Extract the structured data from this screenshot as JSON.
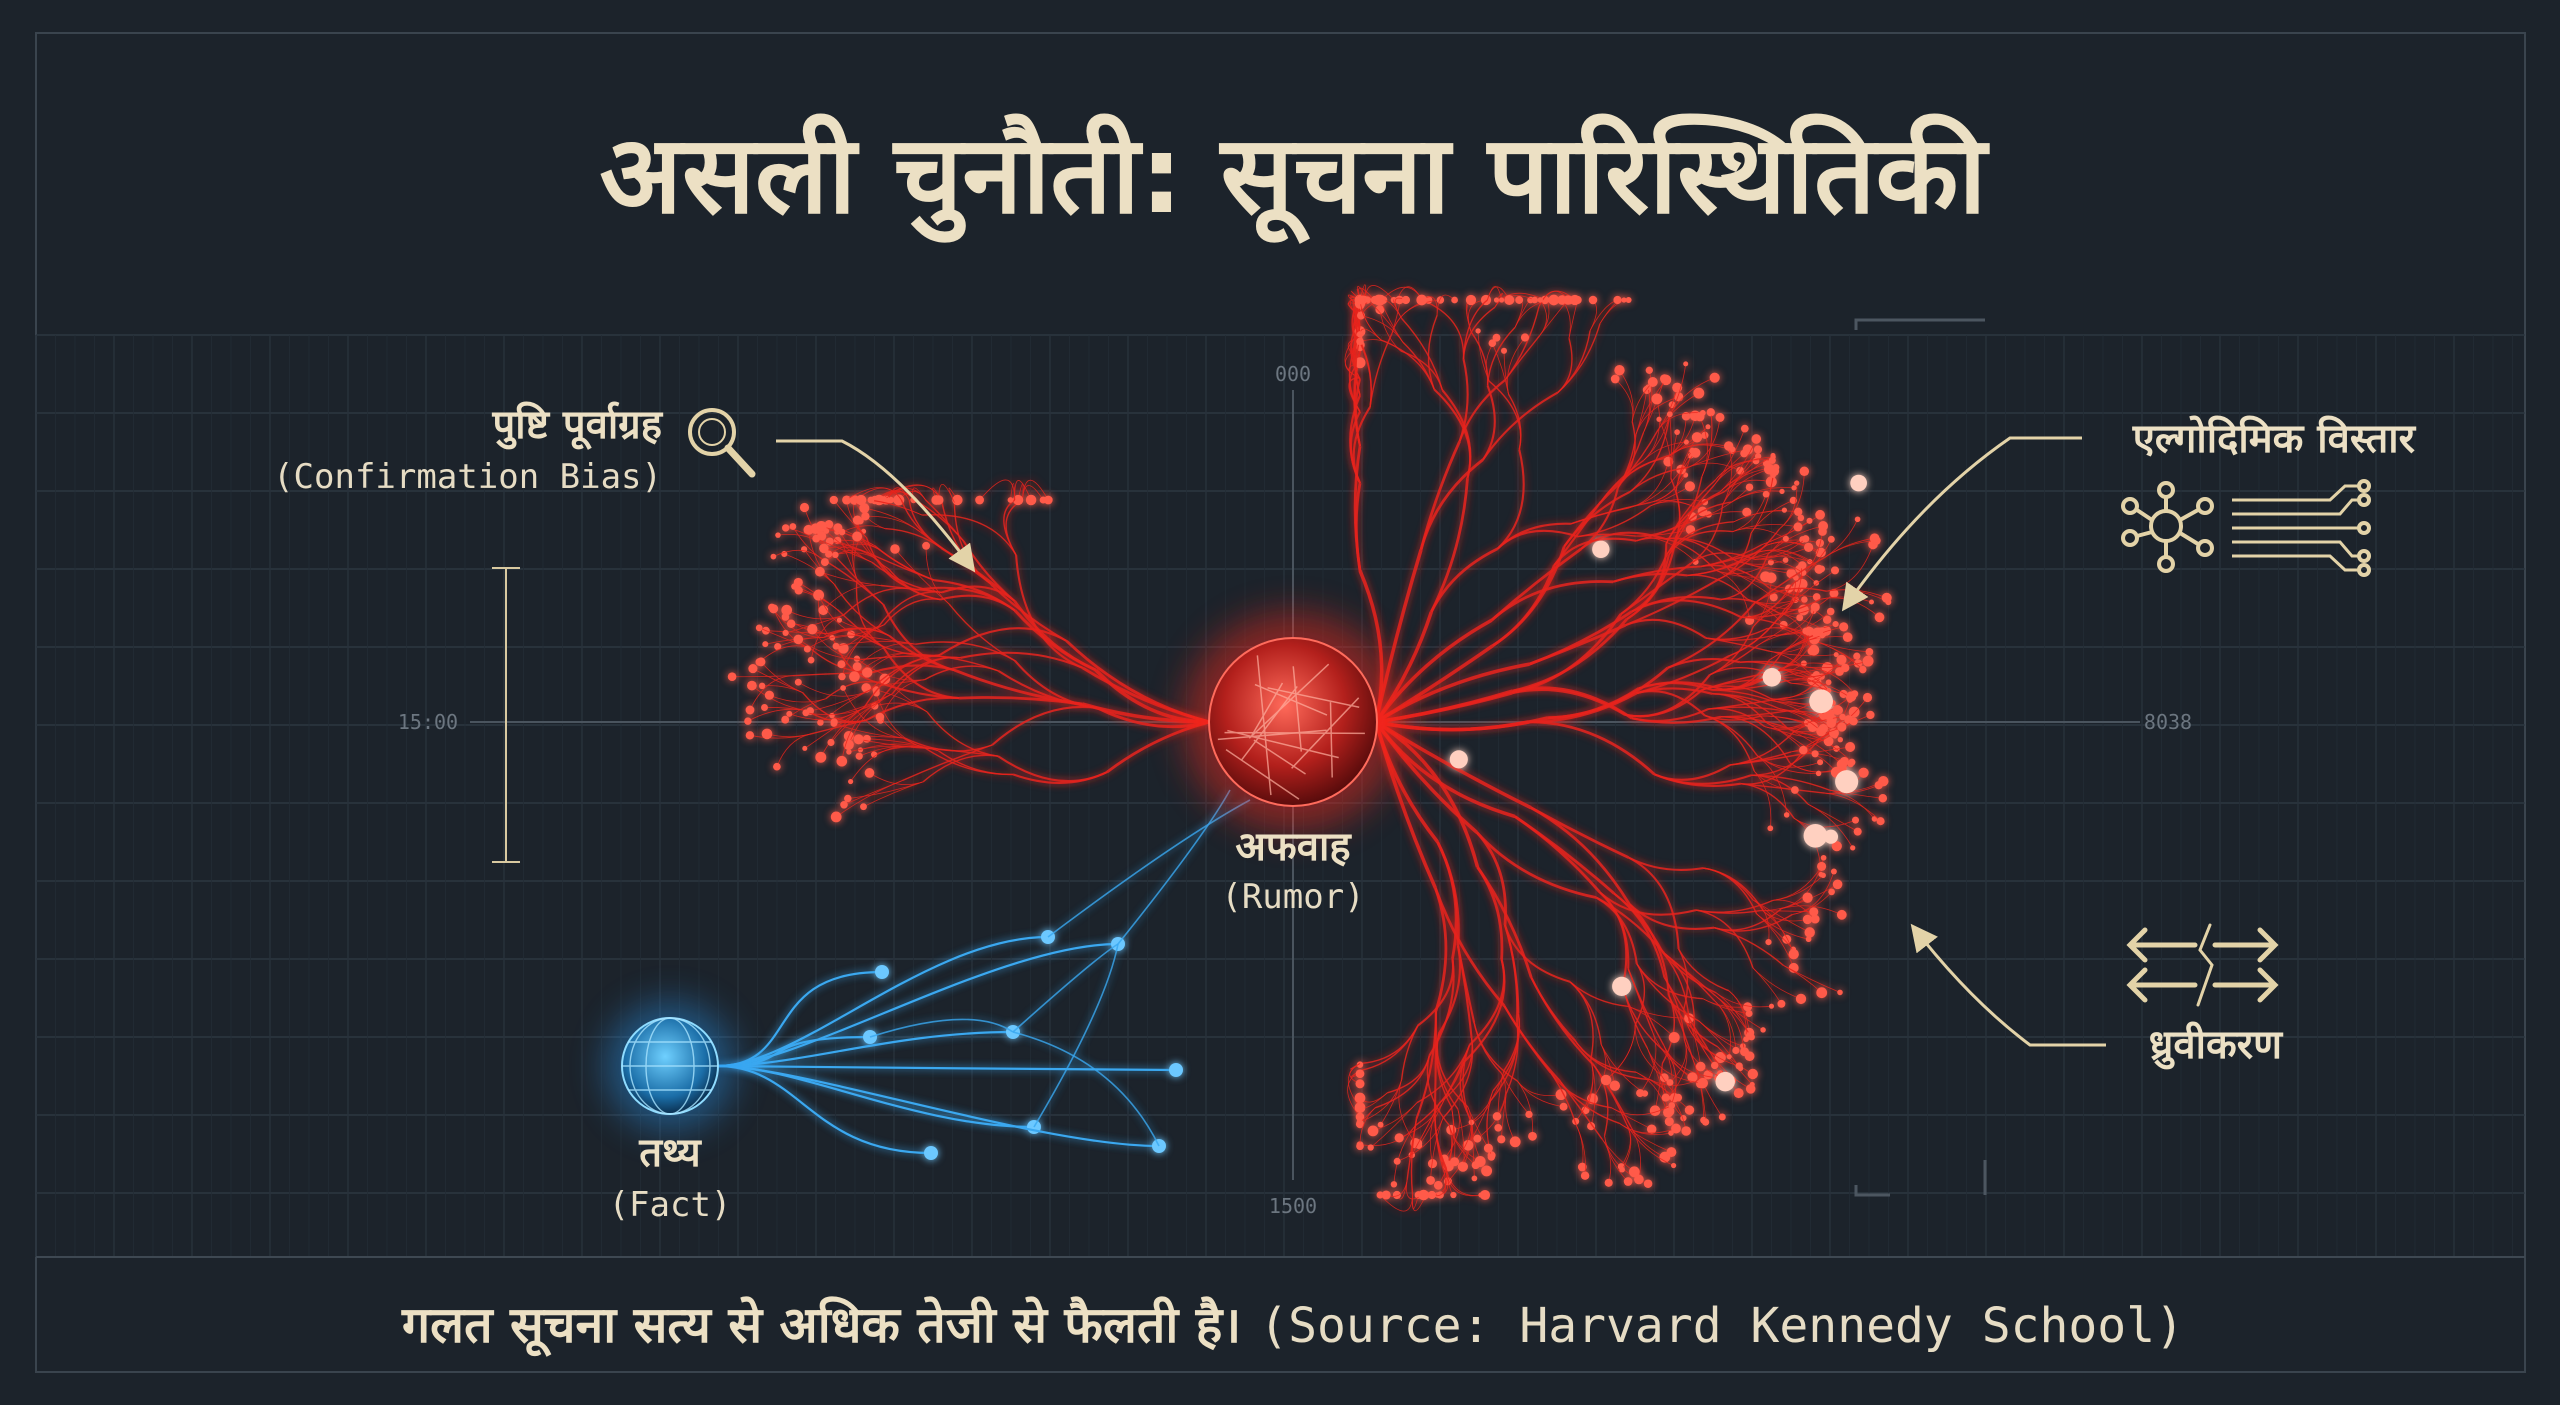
{
  "title": "असली चुनौती: सूचना पारिस्थितिकी",
  "labels": {
    "confirmation_bias": {
      "hindi": "पुष्टि पूर्वाग्रह",
      "english": "(Confirmation Bias)"
    },
    "algorithmic_amplification": {
      "hindi": "एल्गोदिमिक विस्तार"
    },
    "rumor": {
      "hindi": "अफवाह",
      "english": "(Rumor)"
    },
    "fact": {
      "hindi": "तथ्य",
      "english": "(Fact)"
    },
    "polarization": {
      "hindi": "ध्रुवीकरण"
    }
  },
  "scale_labels": [
    "000",
    "15:00",
    "8038",
    "1500"
  ],
  "footer": {
    "statement": "गलत सूचना सत्य से अधिक तेजी से फैलती है।",
    "source": "(Source: Harvard Kennedy School)"
  }
}
